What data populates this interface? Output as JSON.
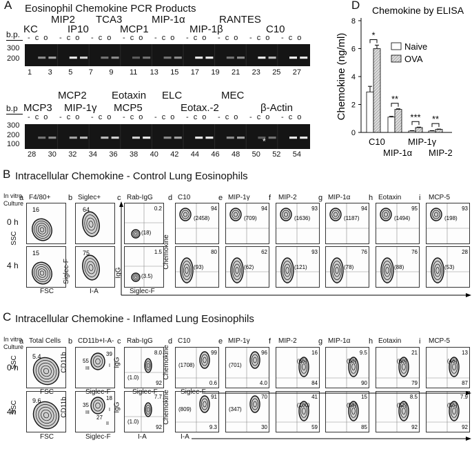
{
  "A": {
    "letter": "A",
    "title": "Eosinophil Chemokine PCR Products",
    "bp": "b.p.",
    "bp2": "b.p",
    "bp_ticks": [
      "300",
      "200",
      "100"
    ],
    "row1_genes": [
      "KC",
      "MIP2",
      "IP10",
      "TCA3",
      "MCP1",
      "MIP-1α",
      "MIP-1β",
      "RANTES",
      "C10"
    ],
    "row2_genes": [
      "MCP3",
      "MCP2",
      "MIP-1γ",
      "Eotaxin",
      "MCP5",
      "ELC",
      "Eotax.-2",
      "MEC",
      "β-Actin"
    ],
    "row1_lanes": [
      "1",
      "3",
      "5",
      "7",
      "9",
      "11",
      "13",
      "15",
      "17",
      "19",
      "21",
      "23",
      "25",
      "27"
    ],
    "row2_lanes": [
      "28",
      "30",
      "32",
      "34",
      "36",
      "38",
      "40",
      "42",
      "44",
      "46",
      "48",
      "50",
      "52",
      "54"
    ],
    "lane_marks": "- c o",
    "star": "*"
  },
  "B": {
    "letter": "B",
    "title": "Intracellular Chemokine - Control Lung Eosinophils",
    "culture": [
      "In vitro",
      "Culture"
    ],
    "times": [
      "0 h",
      "4 h"
    ],
    "subpanels": [
      {
        "letter": "a",
        "label": "F4/80+"
      },
      {
        "letter": "b",
        "label": "Siglec+"
      },
      {
        "letter": "c",
        "label": "Rab-IgG"
      },
      {
        "letter": "d",
        "label": "C10"
      },
      {
        "letter": "e",
        "label": "MIP-1γ"
      },
      {
        "letter": "f",
        "label": "MIP-2"
      },
      {
        "letter": "g",
        "label": "MIP-1α"
      },
      {
        "letter": "h",
        "label": "Eotaxin"
      },
      {
        "letter": "i",
        "label": "MCP-5"
      }
    ],
    "a_vals": [
      "16",
      "15"
    ],
    "b_vals": [
      "64",
      "75"
    ],
    "c_vals": [
      [
        "0.2",
        "(18)"
      ],
      [
        "1.5",
        "(3.5)"
      ]
    ],
    "chem_vals_0h": [
      [
        "94",
        "(2458)"
      ],
      [
        "94",
        "(709)"
      ],
      [
        "93",
        "(1636)"
      ],
      [
        "94",
        "(1187)"
      ],
      [
        "95",
        "(1494)"
      ],
      [
        "93",
        "(198)"
      ]
    ],
    "chem_vals_4h": [
      [
        "80",
        "(93)"
      ],
      [
        "62",
        "(62)"
      ],
      [
        "93",
        "(121)"
      ],
      [
        "76",
        "(78)"
      ],
      [
        "76",
        "(88)"
      ],
      [
        "28",
        "(53)"
      ]
    ],
    "axes": {
      "ssc": "SSC",
      "fsc": "FSC",
      "siglecf": "Siglec-F",
      "ia": "I-A",
      "igg": "IgG",
      "chemokine": "Chemokine"
    }
  },
  "C": {
    "letter": "C",
    "title": "Intracellular Chemokine - Inflamed Lung Eosinophils",
    "culture": [
      "In vitro",
      "Culture"
    ],
    "times": [
      "0 h",
      "4h"
    ],
    "subpanels": [
      {
        "letter": "a",
        "label": "Total Cells"
      },
      {
        "letter": "b",
        "label": "CD11b+I-A-"
      },
      {
        "letter": "c",
        "label": "Rab-IgG"
      },
      {
        "letter": "d",
        "label": "C10"
      },
      {
        "letter": "e",
        "label": "MIP-1γ"
      },
      {
        "letter": "f",
        "label": "MIP-2"
      },
      {
        "letter": "g",
        "label": "MIP-1α"
      },
      {
        "letter": "h",
        "label": "Eotaxin"
      },
      {
        "letter": "i",
        "label": "MCP-5"
      }
    ],
    "a_vals": [
      "5.4",
      "9.6"
    ],
    "b_vals_0h": [
      "55",
      "39",
      "III",
      "I"
    ],
    "b_vals_4h": [
      "35",
      "18",
      "III",
      "I",
      "27",
      "II"
    ],
    "c_vals_0h": [
      "8.0",
      "(1.0)",
      "92"
    ],
    "c_vals_4h": [
      "7.7",
      "(1.0)",
      "92"
    ],
    "chem_0h": [
      [
        "99",
        "(1708)",
        "0.6"
      ],
      [
        "96",
        "(701)",
        "4.0"
      ],
      [
        "16",
        "(65)",
        "84"
      ],
      [
        "9.5",
        "(50)",
        "90"
      ],
      [
        "21",
        "(60)",
        "79"
      ],
      [
        "13",
        "(46)",
        "87"
      ]
    ],
    "chem_4h": [
      [
        "91",
        "(809)",
        "9.3"
      ],
      [
        "70",
        "(347)",
        "30"
      ],
      [
        "41",
        "(100)",
        "59"
      ],
      [
        "15",
        "(59)",
        "85"
      ],
      [
        "8.5",
        "(52)",
        "92"
      ],
      [
        "7.9",
        "(55)",
        "92"
      ]
    ],
    "axes": {
      "ssc": "SSC",
      "fsc": "FSC",
      "cd11b": "CD11b",
      "siglecf": "Siglec-F",
      "igg": "IgG",
      "chemokine": "Chemokine",
      "ia": "I-A"
    }
  },
  "D": {
    "letter": "D",
    "title": "Chemokine by ELISA",
    "chart_data": {
      "type": "bar",
      "title": "Chemokine by ELISA",
      "ylabel": "Chemokine (ng/ml)",
      "ylim": [
        0,
        8
      ],
      "yticks": [
        "0",
        "2",
        "4",
        "6",
        "8"
      ],
      "categories": [
        "C10",
        "MIP-1α",
        "MIP-1γ",
        "MIP-2"
      ],
      "series": [
        {
          "name": "Naive",
          "values": [
            2.9,
            1.1,
            0.1,
            0.1
          ],
          "errors": [
            0.4,
            0.05,
            0.03,
            0.03
          ],
          "color": "#ffffff"
        },
        {
          "name": "OVA",
          "values": [
            6.0,
            1.65,
            0.35,
            0.22
          ],
          "errors": [
            0.25,
            0.04,
            0.03,
            0.02
          ],
          "color": "#cccccc"
        }
      ],
      "significance": [
        "*",
        "**",
        "***",
        "**"
      ],
      "legend": "top-right"
    }
  }
}
